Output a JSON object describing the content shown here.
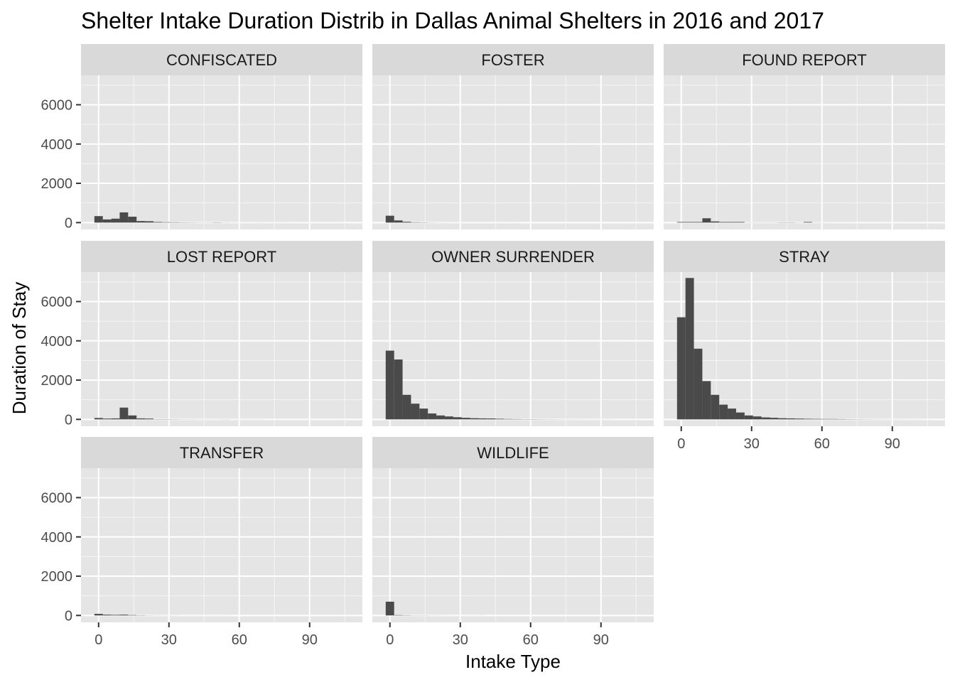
{
  "chart_data": {
    "type": "bar",
    "title": "Shelter Intake Duration Distrib in Dallas Animal Shelters in 2016 and 2017",
    "xlabel": "Intake Type",
    "ylabel": "Duration of Stay",
    "xlim": [
      -7.5,
      112.5
    ],
    "ylim": [
      -350,
      7500
    ],
    "x_ticks": [
      0,
      30,
      60,
      90
    ],
    "y_ticks": [
      0,
      2000,
      4000,
      6000
    ],
    "bin_width": 3.6,
    "bin_starts": [
      -1.8,
      1.8,
      5.4,
      9,
      12.6,
      16.2,
      19.8,
      23.4,
      27,
      30.6,
      34.2,
      37.8,
      41.4,
      45,
      48.6,
      52.2,
      55.8,
      59.4,
      63,
      66.6,
      70.2,
      73.8,
      77.4,
      81,
      84.6,
      88.2,
      91.8,
      95.4,
      99,
      102.6
    ],
    "grid": true,
    "colors": {
      "panel_background": "#e5e5e5",
      "grid_major": "#ffffff",
      "strip_background": "#d9d9d9",
      "bar_fill": "#4a4a4a"
    },
    "facets": [
      {
        "name": "CONFISCATED",
        "values": [
          330,
          160,
          200,
          520,
          300,
          80,
          70,
          30,
          20,
          15,
          10,
          8,
          5,
          5,
          10,
          5,
          3,
          2,
          2,
          3,
          2,
          2,
          2,
          1,
          1,
          1,
          1,
          1,
          1,
          1
        ]
      },
      {
        "name": "FOSTER",
        "values": [
          350,
          110,
          40,
          15,
          10,
          5,
          3,
          2,
          2,
          1,
          1,
          1,
          1,
          1,
          1,
          1,
          0,
          0,
          0,
          0,
          0,
          0,
          0,
          0,
          0,
          0,
          0,
          0,
          0,
          0
        ]
      },
      {
        "name": "FOUND REPORT",
        "values": [
          30,
          30,
          30,
          220,
          60,
          30,
          30,
          30,
          5,
          5,
          5,
          5,
          10,
          10,
          5,
          30,
          5,
          3,
          2,
          2,
          2,
          1,
          1,
          1,
          1,
          1,
          1,
          1,
          1,
          1
        ]
      },
      {
        "name": "LOST REPORT",
        "values": [
          70,
          40,
          50,
          600,
          200,
          50,
          40,
          10,
          10,
          8,
          5,
          5,
          3,
          3,
          3,
          5,
          2,
          2,
          2,
          2,
          1,
          1,
          1,
          1,
          1,
          1,
          1,
          1,
          1,
          1
        ]
      },
      {
        "name": "OWNER SURRENDER",
        "values": [
          3500,
          3050,
          1250,
          800,
          550,
          300,
          200,
          150,
          110,
          80,
          60,
          50,
          45,
          30,
          20,
          15,
          10,
          10,
          8,
          6,
          5,
          4,
          3,
          3,
          2,
          2,
          2,
          1,
          1,
          1
        ]
      },
      {
        "name": "STRAY",
        "values": [
          5200,
          7200,
          3600,
          1950,
          1250,
          750,
          550,
          350,
          200,
          150,
          100,
          80,
          60,
          50,
          40,
          30,
          25,
          20,
          20,
          15,
          10,
          8,
          6,
          5,
          4,
          3,
          3,
          2,
          2,
          1
        ]
      },
      {
        "name": "TRANSFER",
        "values": [
          80,
          40,
          30,
          40,
          20,
          10,
          5,
          3,
          2,
          2,
          1,
          1,
          1,
          1,
          1,
          1,
          0,
          0,
          0,
          0,
          0,
          0,
          0,
          0,
          0,
          0,
          0,
          0,
          0,
          0
        ]
      },
      {
        "name": "WILDLIFE",
        "values": [
          700,
          20,
          10,
          5,
          5,
          3,
          2,
          1,
          1,
          1,
          1,
          1,
          0,
          0,
          0,
          0,
          0,
          0,
          0,
          0,
          0,
          0,
          0,
          0,
          0,
          0,
          0,
          0,
          0,
          0
        ]
      }
    ]
  }
}
